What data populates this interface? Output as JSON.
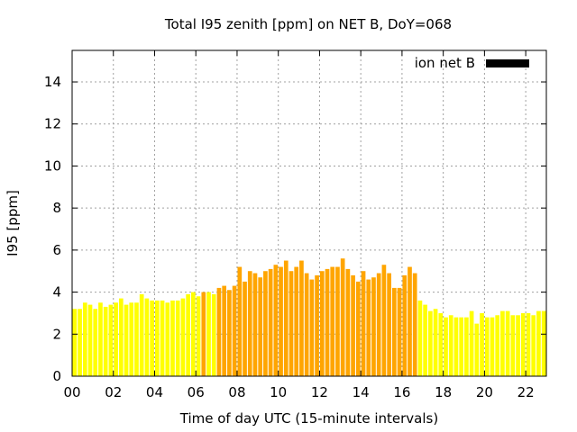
{
  "chart_data": {
    "type": "bar",
    "title": "Total I95 zenith [ppm] on NET B, DoY=068",
    "xlabel": "Time of day UTC (15-minute intervals)",
    "ylabel": "I95 [ppm]",
    "ylim": [
      0,
      15.5
    ],
    "xlim": [
      0,
      23
    ],
    "x_ticks": [
      "00",
      "02",
      "04",
      "06",
      "08",
      "10",
      "12",
      "14",
      "16",
      "18",
      "20",
      "22"
    ],
    "y_ticks": [
      0,
      2,
      4,
      6,
      8,
      10,
      12,
      14
    ],
    "grid": true,
    "legend": {
      "position": "top-right",
      "entries": [
        {
          "label": "ion net B",
          "color": "#000000"
        }
      ]
    },
    "colors": {
      "low": "#ffff00",
      "high": "#ffa500"
    },
    "interval_hours": 0.25,
    "series": [
      {
        "values": [
          3.2,
          3.2,
          3.5,
          3.4,
          3.2,
          3.5,
          3.3,
          3.4,
          3.5,
          3.7,
          3.4,
          3.5,
          3.5,
          3.9,
          3.7,
          3.6,
          3.6,
          3.6,
          3.5,
          3.6,
          3.6,
          3.7,
          3.9,
          4.0,
          3.8,
          4.0,
          4.0,
          3.9,
          4.2,
          4.3,
          4.1,
          4.3,
          5.2,
          4.5,
          5.0,
          4.9,
          4.7,
          5.0,
          5.1,
          5.3,
          5.2,
          5.5,
          5.0,
          5.2,
          5.5,
          4.9,
          4.6,
          4.8,
          5.0,
          5.1,
          5.2,
          5.2,
          5.6,
          5.1,
          4.8,
          4.5,
          5.0,
          4.6,
          4.7,
          4.9,
          5.3,
          4.9,
          4.2,
          4.2,
          4.8,
          5.2,
          4.9,
          3.6,
          3.4,
          3.1,
          3.2,
          3.0,
          2.8,
          2.9,
          2.8,
          2.8,
          2.8,
          3.1,
          2.5,
          3.0,
          2.8,
          2.8,
          2.9,
          3.1,
          3.1,
          2.9,
          2.9,
          3.0,
          3.0,
          2.9,
          3.1,
          3.1
        ],
        "levels": [
          "low",
          "low",
          "low",
          "low",
          "low",
          "low",
          "low",
          "low",
          "low",
          "low",
          "low",
          "low",
          "low",
          "low",
          "low",
          "low",
          "low",
          "low",
          "low",
          "low",
          "low",
          "low",
          "low",
          "low",
          "low",
          "high",
          "low",
          "low",
          "high",
          "high",
          "high",
          "high",
          "high",
          "high",
          "high",
          "high",
          "high",
          "high",
          "high",
          "high",
          "high",
          "high",
          "high",
          "high",
          "high",
          "high",
          "high",
          "high",
          "high",
          "high",
          "high",
          "high",
          "high",
          "high",
          "high",
          "high",
          "high",
          "high",
          "high",
          "high",
          "high",
          "high",
          "high",
          "high",
          "high",
          "high",
          "high",
          "low",
          "low",
          "low",
          "low",
          "low",
          "low",
          "low",
          "low",
          "low",
          "low",
          "low",
          "low",
          "low",
          "low",
          "low",
          "low",
          "low",
          "low",
          "low",
          "low",
          "low",
          "low",
          "low",
          "low",
          "low"
        ]
      }
    ]
  }
}
